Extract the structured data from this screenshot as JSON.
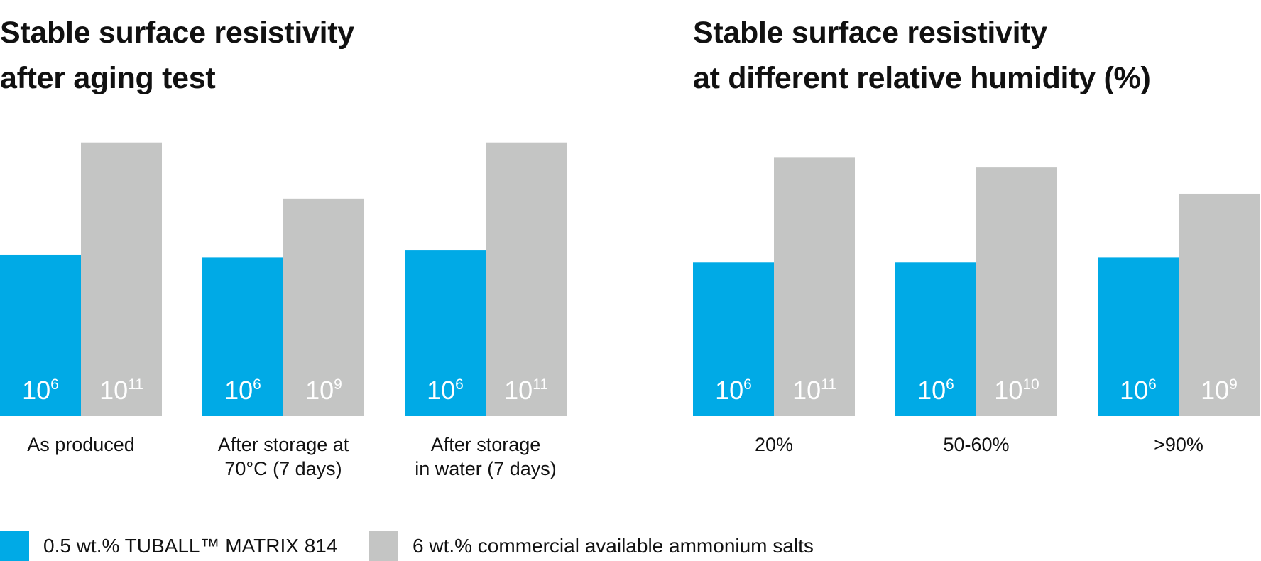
{
  "colors": {
    "tuball": "#00aae6",
    "salts": "#c4c5c4",
    "bar_text": "#ffffff"
  },
  "legend": [
    {
      "label": "0.5 wt.% TUBALL™ MATRIX 814",
      "color": "#00aae6"
    },
    {
      "label": "6 wt.% commercial available ammonium salts",
      "color": "#c4c5c4"
    }
  ],
  "chart_data": [
    {
      "type": "bar",
      "title_lines": [
        "Stable surface resistivity",
        "after aging test"
      ],
      "categories": [
        [
          "As produced"
        ],
        [
          "After storage at",
          "70°C (7 days)"
        ],
        [
          "After storage",
          "in water (7 days)"
        ]
      ],
      "bar_height_scale": [
        0,
        12
      ],
      "series": [
        {
          "name": "0.5 wt.% TUBALL™ MATRIX 814",
          "exponents": [
            6,
            6,
            6
          ],
          "values": [
            6.6,
            6.5,
            6.8
          ]
        },
        {
          "name": "6 wt.% commercial available ammonium salts",
          "exponents": [
            11,
            9,
            11
          ],
          "values": [
            11.2,
            8.9,
            11.2
          ]
        }
      ]
    },
    {
      "type": "bar",
      "title_lines": [
        "Stable surface resistivity",
        "at different relative humidity (%)"
      ],
      "categories": [
        [
          "20%"
        ],
        [
          "50-60%"
        ],
        [
          ">90%"
        ]
      ],
      "bar_height_scale": [
        0,
        12
      ],
      "series": [
        {
          "name": "0.5 wt.% TUBALL™ MATRIX 814",
          "exponents": [
            6,
            6,
            6
          ],
          "values": [
            6.3,
            6.3,
            6.5
          ]
        },
        {
          "name": "6 wt.% commercial available ammonium salts",
          "exponents": [
            11,
            10,
            9
          ],
          "values": [
            10.6,
            10.2,
            9.1
          ]
        }
      ]
    }
  ]
}
